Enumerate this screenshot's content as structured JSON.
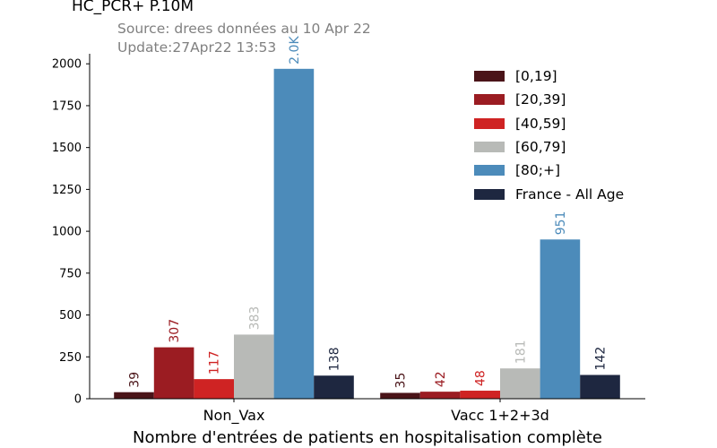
{
  "header": {
    "title": "HC_PCR+ P.10M",
    "source": "Source: drees données au 10 Apr 22",
    "update": "Update:27Apr22 13:53"
  },
  "chart_data": {
    "type": "bar",
    "title": "HC_PCR+ P.10M",
    "xlabel": "Nombre d'entrées de patients en hospitalisation complète",
    "ylabel": "",
    "ylim": [
      0,
      2060
    ],
    "yticks": [
      0,
      250,
      500,
      750,
      1000,
      1250,
      1500,
      1750,
      2000
    ],
    "categories": [
      "Non_Vax",
      "Vacc 1+2+3d"
    ],
    "legend_position": "top-right",
    "grid": false,
    "series": [
      {
        "name": "[0,19]",
        "color": "#4a1418",
        "values": [
          39,
          35
        ],
        "labels": [
          "39",
          "35"
        ]
      },
      {
        "name": "[20,39]",
        "color": "#9b1c22",
        "values": [
          307,
          42
        ],
        "labels": [
          "307",
          "42"
        ]
      },
      {
        "name": "[40,59]",
        "color": "#cf2323",
        "values": [
          117,
          48
        ],
        "labels": [
          "117",
          "48"
        ]
      },
      {
        "name": "[60,79]",
        "color": "#b8bab7",
        "values": [
          383,
          181
        ],
        "labels": [
          "383",
          "181"
        ]
      },
      {
        "name": "[80;+]",
        "color": "#4c8bba",
        "values": [
          1970,
          951
        ],
        "labels": [
          "2.0K",
          "951"
        ]
      },
      {
        "name": "France - All Age",
        "color": "#1e2740",
        "values": [
          138,
          142
        ],
        "labels": [
          "138",
          "142"
        ]
      }
    ]
  }
}
